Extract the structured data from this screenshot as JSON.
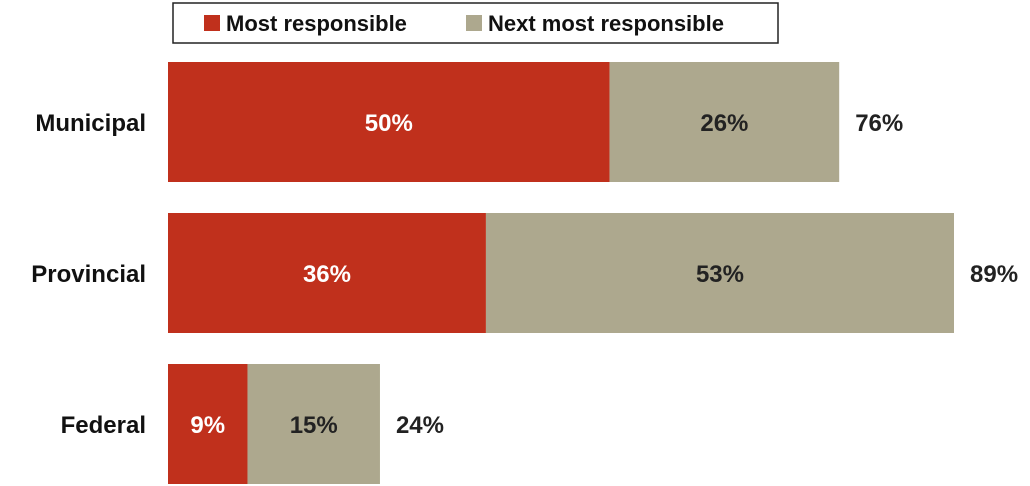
{
  "chart_data": {
    "type": "bar",
    "orientation": "horizontal",
    "stacked": true,
    "title": "",
    "xlabel": "",
    "ylabel": "",
    "xlim": [
      0,
      100
    ],
    "grid": false,
    "legend_position": "top",
    "categories": [
      "Municipal",
      "Provincial",
      "Federal"
    ],
    "series": [
      {
        "name": "Most responsible",
        "values": [
          50,
          36,
          9
        ],
        "labels": [
          "50%",
          "36%",
          "9%"
        ],
        "color": "#C0301C",
        "label_color": "#FFFFFF"
      },
      {
        "name": "Next most responsible",
        "values": [
          26,
          53,
          15
        ],
        "labels": [
          "26%",
          "53%",
          "15%"
        ],
        "color": "#ADA88E",
        "label_color": "#222222"
      }
    ],
    "totals": [
      76,
      89,
      24
    ],
    "total_labels": [
      "76%",
      "89%",
      "24%"
    ]
  }
}
